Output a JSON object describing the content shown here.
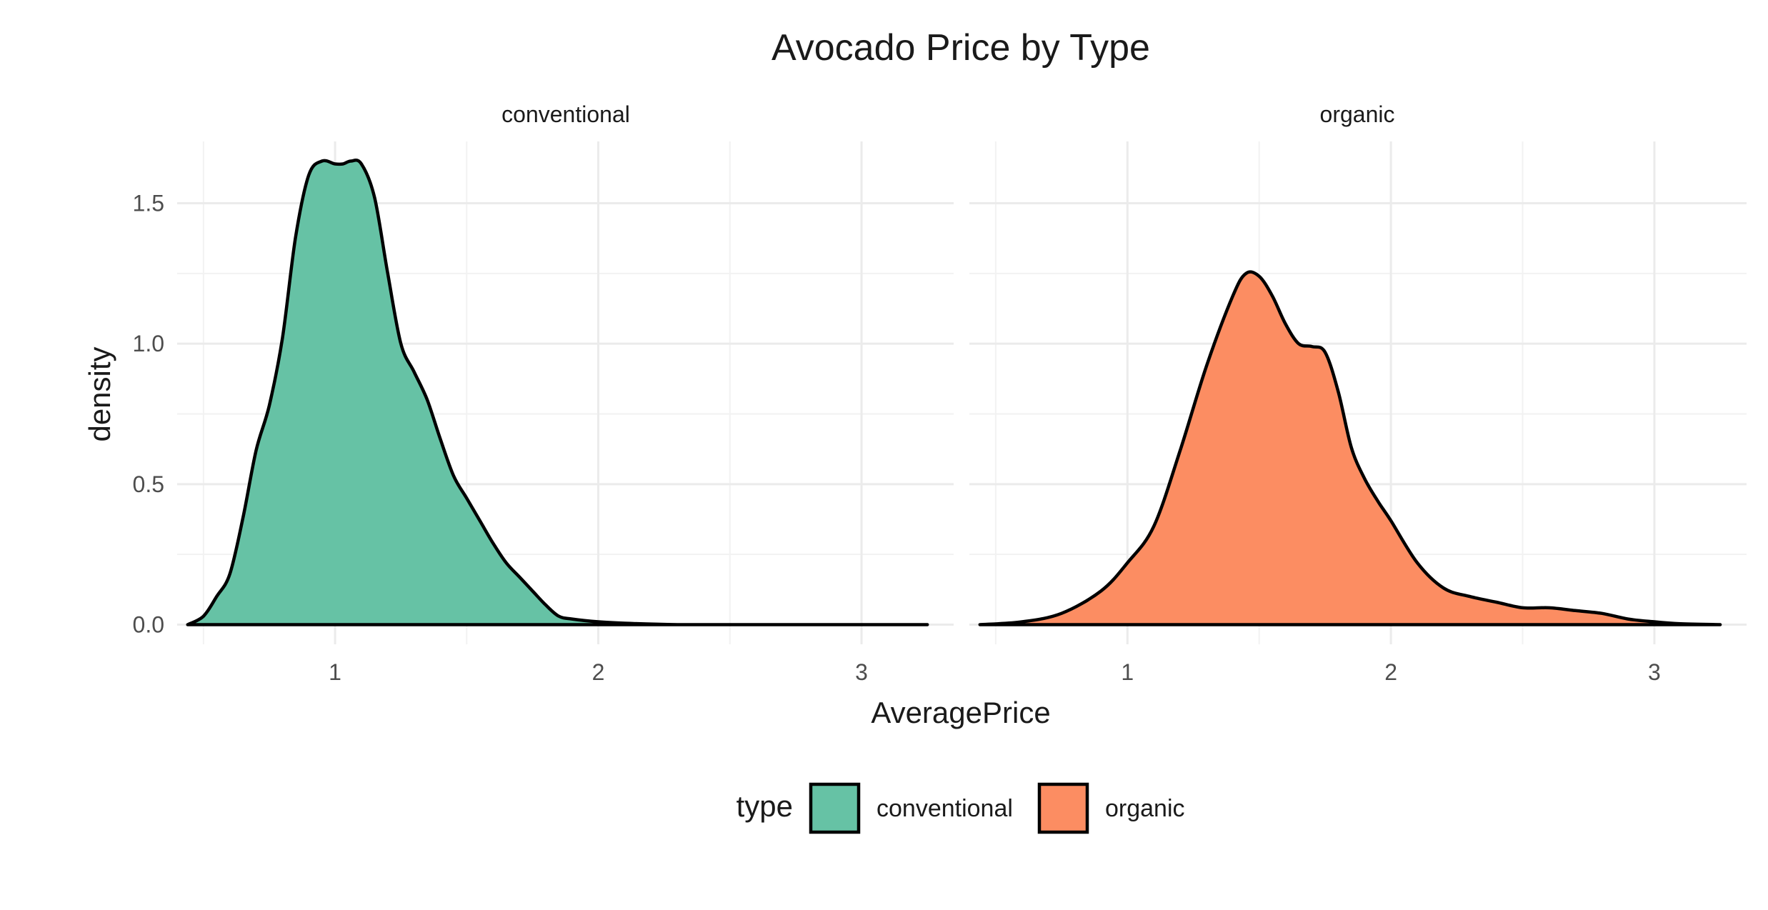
{
  "chart_data": {
    "type": "area",
    "title": "Avocado Price by Type",
    "xlabel": "AveragePrice",
    "ylabel": "density",
    "xlim": [
      0.4,
      3.35
    ],
    "ylim": [
      -0.07,
      1.72
    ],
    "x_ticks": [
      1,
      2,
      3
    ],
    "y_ticks": [
      0.0,
      0.5,
      1.0,
      1.5
    ],
    "x_tick_labels": [
      "1",
      "2",
      "3"
    ],
    "y_tick_labels": [
      "0.0",
      "0.5",
      "1.0",
      "1.5"
    ],
    "grid": true,
    "legend": {
      "title": "type",
      "position": "bottom",
      "entries": [
        "conventional",
        "organic"
      ]
    },
    "facets": [
      {
        "strip": "conventional",
        "series": {
          "name": "conventional",
          "color": "#66C2A5",
          "x": [
            0.44,
            0.5,
            0.55,
            0.6,
            0.65,
            0.7,
            0.75,
            0.8,
            0.85,
            0.9,
            0.95,
            1.0,
            1.03,
            1.06,
            1.1,
            1.15,
            1.2,
            1.25,
            1.3,
            1.35,
            1.4,
            1.45,
            1.5,
            1.55,
            1.6,
            1.65,
            1.7,
            1.75,
            1.8,
            1.85,
            1.9,
            2.0,
            2.1,
            2.3,
            2.6,
            3.0,
            3.25
          ],
          "y": [
            0.0,
            0.03,
            0.1,
            0.18,
            0.38,
            0.62,
            0.78,
            1.02,
            1.38,
            1.6,
            1.65,
            1.64,
            1.64,
            1.65,
            1.64,
            1.52,
            1.25,
            1.0,
            0.9,
            0.8,
            0.66,
            0.53,
            0.45,
            0.37,
            0.29,
            0.22,
            0.17,
            0.12,
            0.07,
            0.03,
            0.02,
            0.01,
            0.005,
            0.0,
            0.0,
            0.0,
            0.0
          ]
        }
      },
      {
        "strip": "organic",
        "series": {
          "name": "organic",
          "color": "#FC8D62",
          "x": [
            0.44,
            0.6,
            0.75,
            0.9,
            1.0,
            1.1,
            1.2,
            1.3,
            1.4,
            1.45,
            1.5,
            1.55,
            1.6,
            1.65,
            1.7,
            1.75,
            1.8,
            1.85,
            1.9,
            1.95,
            2.0,
            2.1,
            2.2,
            2.3,
            2.4,
            2.5,
            2.6,
            2.7,
            2.8,
            2.9,
            3.0,
            3.1,
            3.25
          ],
          "y": [
            0.0,
            0.01,
            0.04,
            0.12,
            0.22,
            0.35,
            0.62,
            0.92,
            1.17,
            1.25,
            1.24,
            1.17,
            1.07,
            1.0,
            0.99,
            0.97,
            0.83,
            0.63,
            0.52,
            0.44,
            0.37,
            0.22,
            0.13,
            0.1,
            0.08,
            0.06,
            0.06,
            0.05,
            0.04,
            0.02,
            0.01,
            0.003,
            0.0
          ]
        }
      }
    ]
  }
}
